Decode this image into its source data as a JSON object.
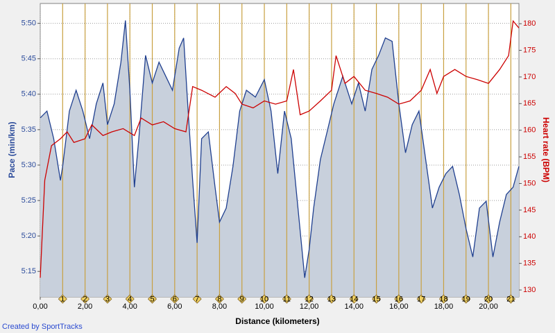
{
  "chart_data": {
    "type": "line",
    "xlabel": "Distance  (kilometers)",
    "ylabel": "Pace  (min/km)",
    "y2label": "Heart rate  (BPM)",
    "footer": "Created by SportTracks",
    "grid": true,
    "xlim": [
      0,
      21.36
    ],
    "xticks": [
      {
        "value": 0,
        "label": "0,00"
      },
      {
        "value": 2,
        "label": "2,00"
      },
      {
        "value": 4,
        "label": "4,00"
      },
      {
        "value": 6,
        "label": "6,00"
      },
      {
        "value": 8,
        "label": "8,00"
      },
      {
        "value": 10,
        "label": "10,00"
      },
      {
        "value": 12,
        "label": "12,00"
      },
      {
        "value": 14,
        "label": "14,00"
      },
      {
        "value": 16,
        "label": "16,00"
      },
      {
        "value": 18,
        "label": "18,00"
      },
      {
        "value": 20,
        "label": "20,00"
      }
    ],
    "ylim": [
      5.19,
      5.88
    ],
    "yticks": [
      {
        "value": 5.25,
        "label": "5:15"
      },
      {
        "value": 5.3333,
        "label": "5:20"
      },
      {
        "value": 5.4167,
        "label": "5:25"
      },
      {
        "value": 5.5,
        "label": "5:30"
      },
      {
        "value": 5.5833,
        "label": "5:35"
      },
      {
        "value": 5.6667,
        "label": "5:40"
      },
      {
        "value": 5.75,
        "label": "5:45"
      },
      {
        "value": 5.8333,
        "label": "5:50"
      }
    ],
    "y2lim": [
      128.7,
      183.8
    ],
    "y2ticks": [
      130,
      135,
      140,
      145,
      150,
      155,
      160,
      165,
      170,
      175,
      180
    ],
    "markers": [
      1,
      2,
      3,
      4,
      5,
      6,
      7,
      8,
      9,
      10,
      11,
      12,
      13,
      14,
      15,
      16,
      17,
      18,
      19,
      20,
      21
    ],
    "marker_color": "#c8a040",
    "series": [
      {
        "name": "Pace",
        "color": "#1f3f8f",
        "fill": "#c8d0dc",
        "x": [
          0,
          0.3,
          0.6,
          0.9,
          1.0,
          1.3,
          1.6,
          1.9,
          2.2,
          2.5,
          2.8,
          3.0,
          3.3,
          3.6,
          3.8,
          4.0,
          4.2,
          4.4,
          4.7,
          5.0,
          5.3,
          5.6,
          5.9,
          6.2,
          6.4,
          6.6,
          6.8,
          7.0,
          7.2,
          7.5,
          7.8,
          8.0,
          8.3,
          8.6,
          8.9,
          9.2,
          9.6,
          10.0,
          10.3,
          10.6,
          10.9,
          11.2,
          11.5,
          11.8,
          12.0,
          12.2,
          12.5,
          12.8,
          13.1,
          13.5,
          13.9,
          14.2,
          14.5,
          14.8,
          15.1,
          15.4,
          15.7,
          16.0,
          16.3,
          16.6,
          16.9,
          17.2,
          17.5,
          17.8,
          18.1,
          18.4,
          18.7,
          19.0,
          19.3,
          19.6,
          19.9,
          20.2,
          20.5,
          20.8,
          21.1,
          21.36
        ],
        "values": [
          5.611,
          5.627,
          5.562,
          5.464,
          5.497,
          5.627,
          5.676,
          5.627,
          5.562,
          5.644,
          5.693,
          5.595,
          5.644,
          5.742,
          5.84,
          5.676,
          5.448,
          5.562,
          5.758,
          5.693,
          5.742,
          5.709,
          5.676,
          5.775,
          5.799,
          5.627,
          5.464,
          5.317,
          5.562,
          5.578,
          5.448,
          5.366,
          5.399,
          5.497,
          5.627,
          5.676,
          5.66,
          5.701,
          5.627,
          5.48,
          5.627,
          5.562,
          5.399,
          5.235,
          5.301,
          5.399,
          5.513,
          5.578,
          5.644,
          5.709,
          5.644,
          5.693,
          5.627,
          5.725,
          5.758,
          5.799,
          5.791,
          5.644,
          5.529,
          5.595,
          5.627,
          5.513,
          5.399,
          5.448,
          5.48,
          5.497,
          5.431,
          5.35,
          5.284,
          5.399,
          5.415,
          5.284,
          5.366,
          5.431,
          5.448,
          5.497
        ]
      },
      {
        "name": "Heart rate",
        "color": "#cc0000",
        "axis": "y2",
        "x": [
          0,
          0.2,
          0.5,
          0.9,
          1.2,
          1.5,
          2.0,
          2.3,
          2.8,
          3.2,
          3.7,
          4.2,
          4.5,
          5.0,
          5.5,
          6.0,
          6.5,
          6.8,
          7.2,
          7.8,
          8.3,
          8.7,
          9.0,
          9.5,
          10.0,
          10.5,
          11.0,
          11.3,
          11.6,
          12.0,
          12.5,
          13.0,
          13.2,
          13.6,
          14.0,
          14.5,
          15.0,
          15.5,
          16.0,
          16.5,
          17.0,
          17.4,
          17.7,
          18.0,
          18.5,
          19.0,
          19.5,
          20.0,
          20.5,
          20.9,
          21.1,
          21.36
        ],
        "values": [
          132.3,
          150.6,
          157.1,
          158.4,
          159.7,
          157.7,
          158.4,
          161.0,
          159.0,
          159.7,
          160.3,
          159.0,
          162.3,
          161.0,
          161.6,
          160.3,
          159.7,
          168.2,
          167.5,
          166.2,
          168.2,
          166.9,
          164.9,
          164.2,
          165.5,
          164.9,
          165.5,
          171.4,
          162.9,
          163.6,
          165.5,
          167.5,
          174.0,
          168.8,
          170.1,
          167.5,
          166.9,
          166.2,
          164.9,
          165.5,
          167.5,
          171.4,
          166.9,
          170.1,
          171.4,
          170.1,
          169.5,
          168.8,
          171.4,
          174.0,
          180.5,
          179.2
        ]
      }
    ]
  }
}
